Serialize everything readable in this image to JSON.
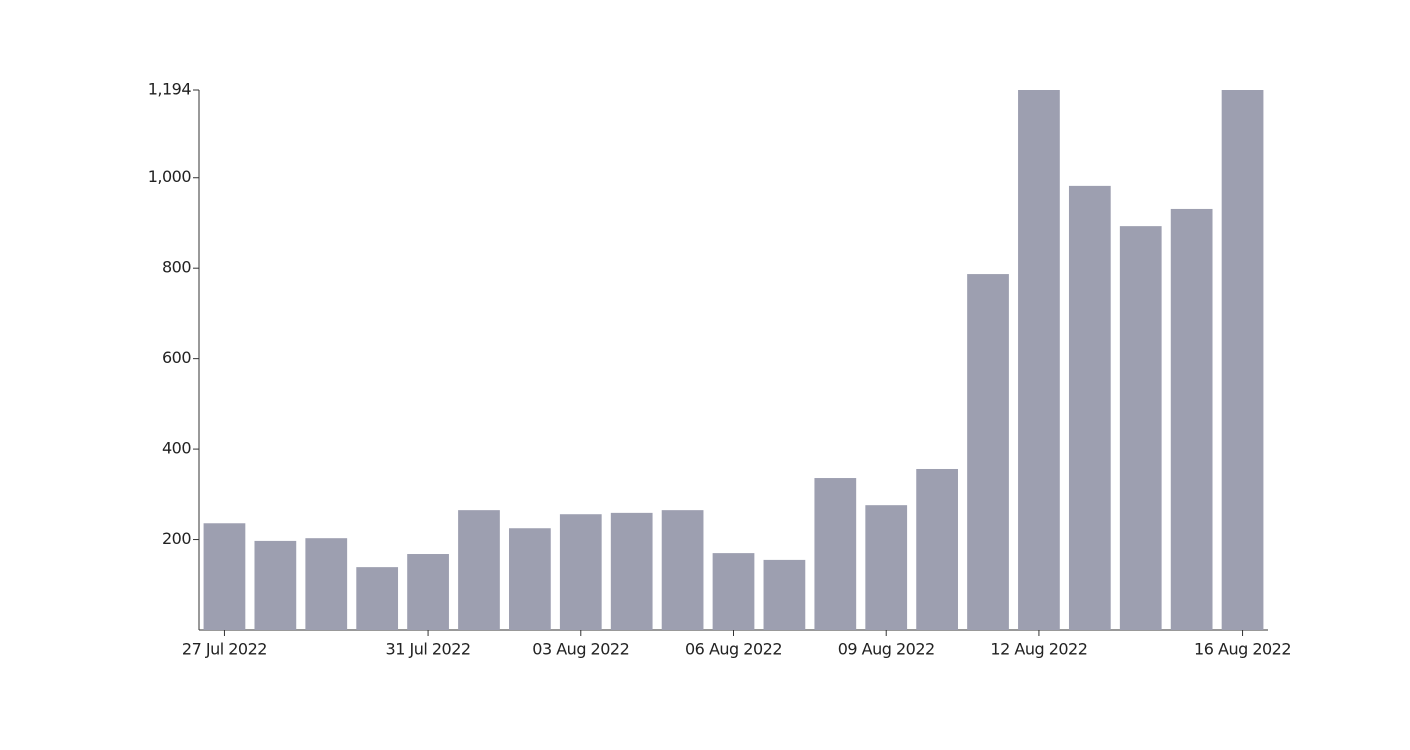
{
  "chart_data": {
    "type": "bar",
    "categories": [
      "27 Jul 2022",
      null,
      null,
      null,
      "31 Jul 2022",
      null,
      null,
      "03 Aug 2022",
      null,
      null,
      "06 Aug 2022",
      null,
      null,
      "09 Aug 2022",
      null,
      null,
      "12 Aug 2022",
      null,
      null,
      null,
      "16 Aug 2022"
    ],
    "values": [
      236,
      197,
      203,
      139,
      168,
      265,
      225,
      256,
      259,
      265,
      170,
      155,
      336,
      276,
      356,
      787,
      1194,
      982,
      893,
      931,
      1194
    ],
    "color": "#9d9fb0",
    "ylim": [
      0,
      1194
    ],
    "yticks": [
      200,
      400,
      600,
      800,
      {
        "value": 1000,
        "label": "1,000"
      },
      {
        "value": 1194,
        "label": "1,194"
      }
    ],
    "grid": false
  }
}
